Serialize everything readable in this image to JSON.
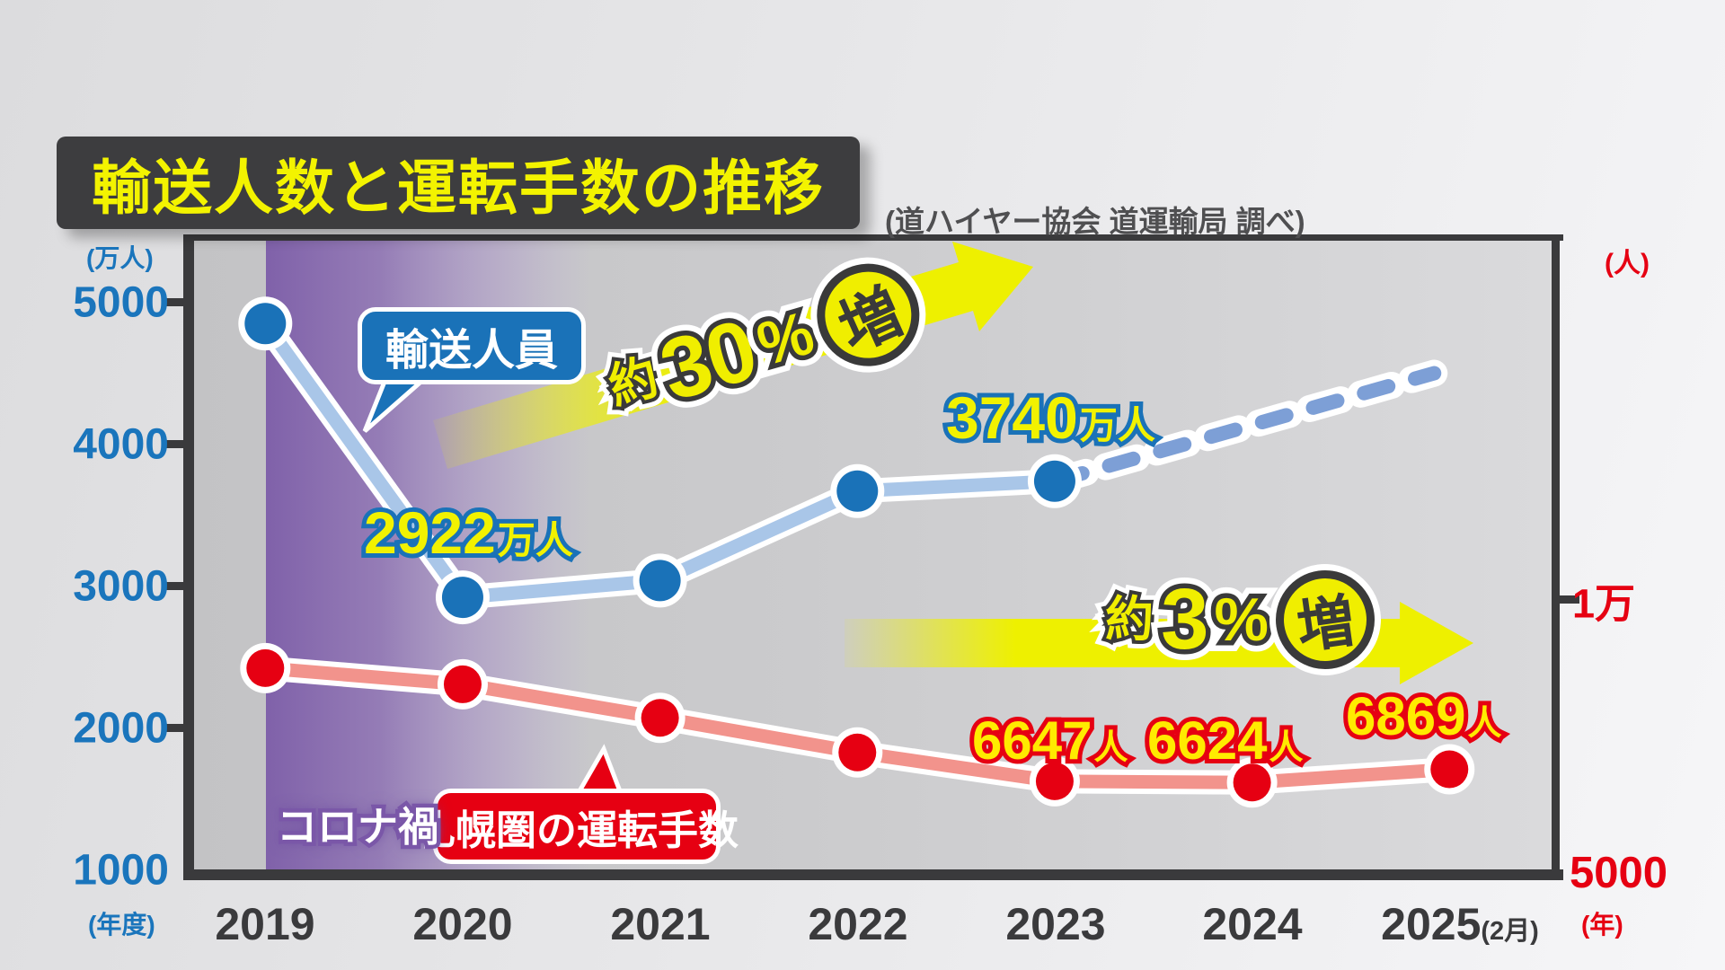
{
  "header": {
    "title": "輸送人数と運転手数の推移",
    "source": "(道ハイヤー協会 道運輸局 調べ)"
  },
  "left_axis": {
    "unit_top": "(万人)",
    "unit_bottom": "(年度)",
    "ticks": [
      "5000",
      "4000",
      "3000",
      "2000",
      "1000"
    ],
    "color": "#1a75bc"
  },
  "right_axis": {
    "unit_top": "(人)",
    "unit_bottom": "(年)",
    "tick_mid": "1万",
    "tick_bottom": "5000",
    "color": "#e60012"
  },
  "x_axis": {
    "labels": [
      "2019",
      "2020",
      "2021",
      "2022",
      "2023",
      "2024",
      "2025"
    ],
    "last_suffix": "(2月)"
  },
  "annotations": {
    "passenger_bubble": "輸送人員",
    "driver_bubble": "札幌圏の運転手数",
    "covid": "コロナ禍",
    "arrow30": {
      "prefix": "約",
      "number": "30",
      "percent": "%",
      "suffix": "増"
    },
    "arrow3": {
      "prefix": "約",
      "number": "3",
      "percent": "%",
      "suffix": "増"
    },
    "label_2922": {
      "value": "2922",
      "unit": "万人"
    },
    "label_3740": {
      "value": "3740",
      "unit": "万人"
    },
    "label_6647": {
      "value": "6647",
      "unit": "人"
    },
    "label_6624": {
      "value": "6624",
      "unit": "人"
    },
    "label_6869": {
      "value": "6869",
      "unit": "人"
    }
  },
  "chart_data": {
    "type": "line",
    "categories": [
      "2019",
      "2020",
      "2021",
      "2022",
      "2023",
      "2024",
      "2025(2月)"
    ],
    "series": [
      {
        "name": "輸送人員",
        "axis": "left",
        "unit": "万人",
        "point_color": "#1a72b8",
        "line_color": "#a9c6e8",
        "values": [
          4850,
          2922,
          3040,
          3670,
          3740,
          null,
          null
        ],
        "projection_values": [
          null,
          null,
          null,
          null,
          3740,
          4150,
          4500
        ],
        "projection_estimated": true,
        "labeled_points": {
          "2020": "2922万人",
          "2023": "3740万人"
        },
        "change_note": "約30%増"
      },
      {
        "name": "札幌圏の運転手数",
        "axis": "right",
        "unit": "人",
        "point_color": "#e60012",
        "line_color": "#f2938c",
        "values": [
          8740,
          8440,
          7820,
          7180,
          6647,
          6624,
          6869
        ],
        "labeled_points": {
          "2023": "6647人",
          "2024": "6624人",
          "2025(2月)": "6869人"
        },
        "change_note": "約3%増"
      }
    ],
    "left_axis": {
      "label": "(万人)",
      "range": [
        1000,
        5000
      ],
      "ticks": [
        5000,
        4000,
        3000,
        2000,
        1000
      ]
    },
    "right_axis": {
      "label": "(人)",
      "range": [
        5000,
        10000
      ],
      "ticks": [
        10000,
        5000
      ]
    },
    "highlight_band": {
      "label": "コロナ禍",
      "from_category": "2019",
      "fade_out_after": "2020"
    },
    "legend_position": "on-chart-bubbles",
    "grid": false
  }
}
